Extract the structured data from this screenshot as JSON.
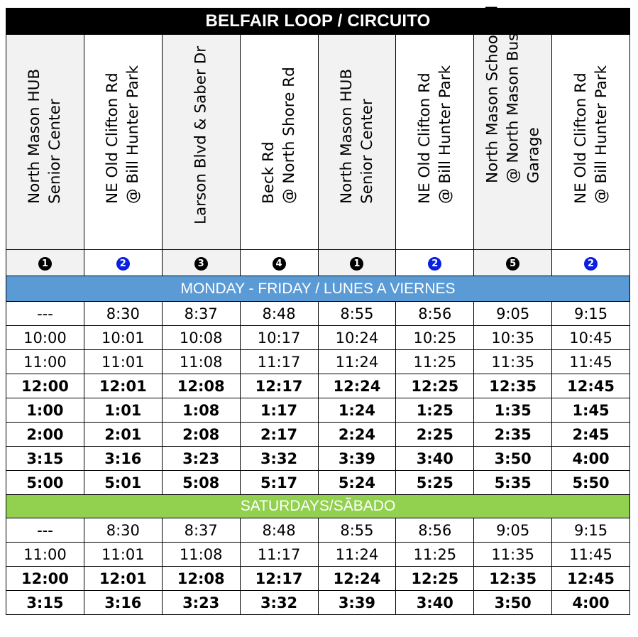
{
  "title": "BELFAIR LOOP / CIRCUITO",
  "stops": [
    {
      "lines": [
        "North Mason HUB",
        "Senior Center"
      ],
      "badge": "1",
      "badge_color": "#000000",
      "shaded": true
    },
    {
      "lines": [
        "NE Old Clifton Rd",
        "@ Bill Hunter Park"
      ],
      "badge": "2",
      "badge_color": "#0b1fe0",
      "shaded": false
    },
    {
      "lines": [
        "Larson Blvd & Saber Dr"
      ],
      "badge": "3",
      "badge_color": "#000000",
      "shaded": true
    },
    {
      "lines": [
        "Beck Rd",
        "@ North Shore Rd"
      ],
      "badge": "4",
      "badge_color": "#000000",
      "shaded": false
    },
    {
      "lines": [
        "North Mason HUB",
        "Senior Center"
      ],
      "badge": "1",
      "badge_color": "#000000",
      "shaded": true
    },
    {
      "lines": [
        "NE Old Clifton Rd",
        "@ Bill Hunter Park"
      ],
      "badge": "2",
      "badge_color": "#0b1fe0",
      "shaded": false
    },
    {
      "lines": [
        "North Mason School Rd",
        "@ North Mason Bus",
        "Garage"
      ],
      "badge": "5",
      "badge_color": "#000000",
      "shaded": true
    },
    {
      "lines": [
        "NE Old Clifton Rd",
        "@ Bill Hunter Park"
      ],
      "badge": "2",
      "badge_color": "#0b1fe0",
      "shaded": false
    }
  ],
  "sections": [
    {
      "label": "MONDAY - FRIDAY / LUNES A VIERNES",
      "color": "#5b9bd5",
      "rows": [
        {
          "bold": false,
          "times": [
            "---",
            "8:30",
            "8:37",
            "8:48",
            "8:55",
            "8:56",
            "9:05",
            "9:15"
          ]
        },
        {
          "bold": false,
          "times": [
            "10:00",
            "10:01",
            "10:08",
            "10:17",
            "10:24",
            "10:25",
            "10:35",
            "10:45"
          ]
        },
        {
          "bold": false,
          "times": [
            "11:00",
            "11:01",
            "11:08",
            "11:17",
            "11:24",
            "11:25",
            "11:35",
            "11:45"
          ]
        },
        {
          "bold": true,
          "times": [
            "12:00",
            "12:01",
            "12:08",
            "12:17",
            "12:24",
            "12:25",
            "12:35",
            "12:45"
          ]
        },
        {
          "bold": true,
          "times": [
            "1:00",
            "1:01",
            "1:08",
            "1:17",
            "1:24",
            "1:25",
            "1:35",
            "1:45"
          ]
        },
        {
          "bold": true,
          "times": [
            "2:00",
            "2:01",
            "2:08",
            "2:17",
            "2:24",
            "2:25",
            "2:35",
            "2:45"
          ]
        },
        {
          "bold": true,
          "times": [
            "3:15",
            "3:16",
            "3:23",
            "3:32",
            "3:39",
            "3:40",
            "3:50",
            "4:00"
          ]
        },
        {
          "bold": true,
          "times": [
            "5:00",
            "5:01",
            "5:08",
            "5:17",
            "5:24",
            "5:25",
            "5:35",
            "5:50"
          ]
        }
      ]
    },
    {
      "label": "SATURDAYS/SÃBADO",
      "color": "#92d050",
      "rows": [
        {
          "bold": false,
          "times": [
            "---",
            "8:30",
            "8:37",
            "8:48",
            "8:55",
            "8:56",
            "9:05",
            "9:15"
          ]
        },
        {
          "bold": false,
          "times": [
            "11:00",
            "11:01",
            "11:08",
            "11:17",
            "11:24",
            "11:25",
            "11:35",
            "11:45"
          ]
        },
        {
          "bold": true,
          "times": [
            "12:00",
            "12:01",
            "12:08",
            "12:17",
            "12:24",
            "12:25",
            "12:35",
            "12:45"
          ]
        },
        {
          "bold": true,
          "times": [
            "3:15",
            "3:16",
            "3:23",
            "3:32",
            "3:39",
            "3:40",
            "3:50",
            "4:00"
          ]
        }
      ]
    }
  ]
}
